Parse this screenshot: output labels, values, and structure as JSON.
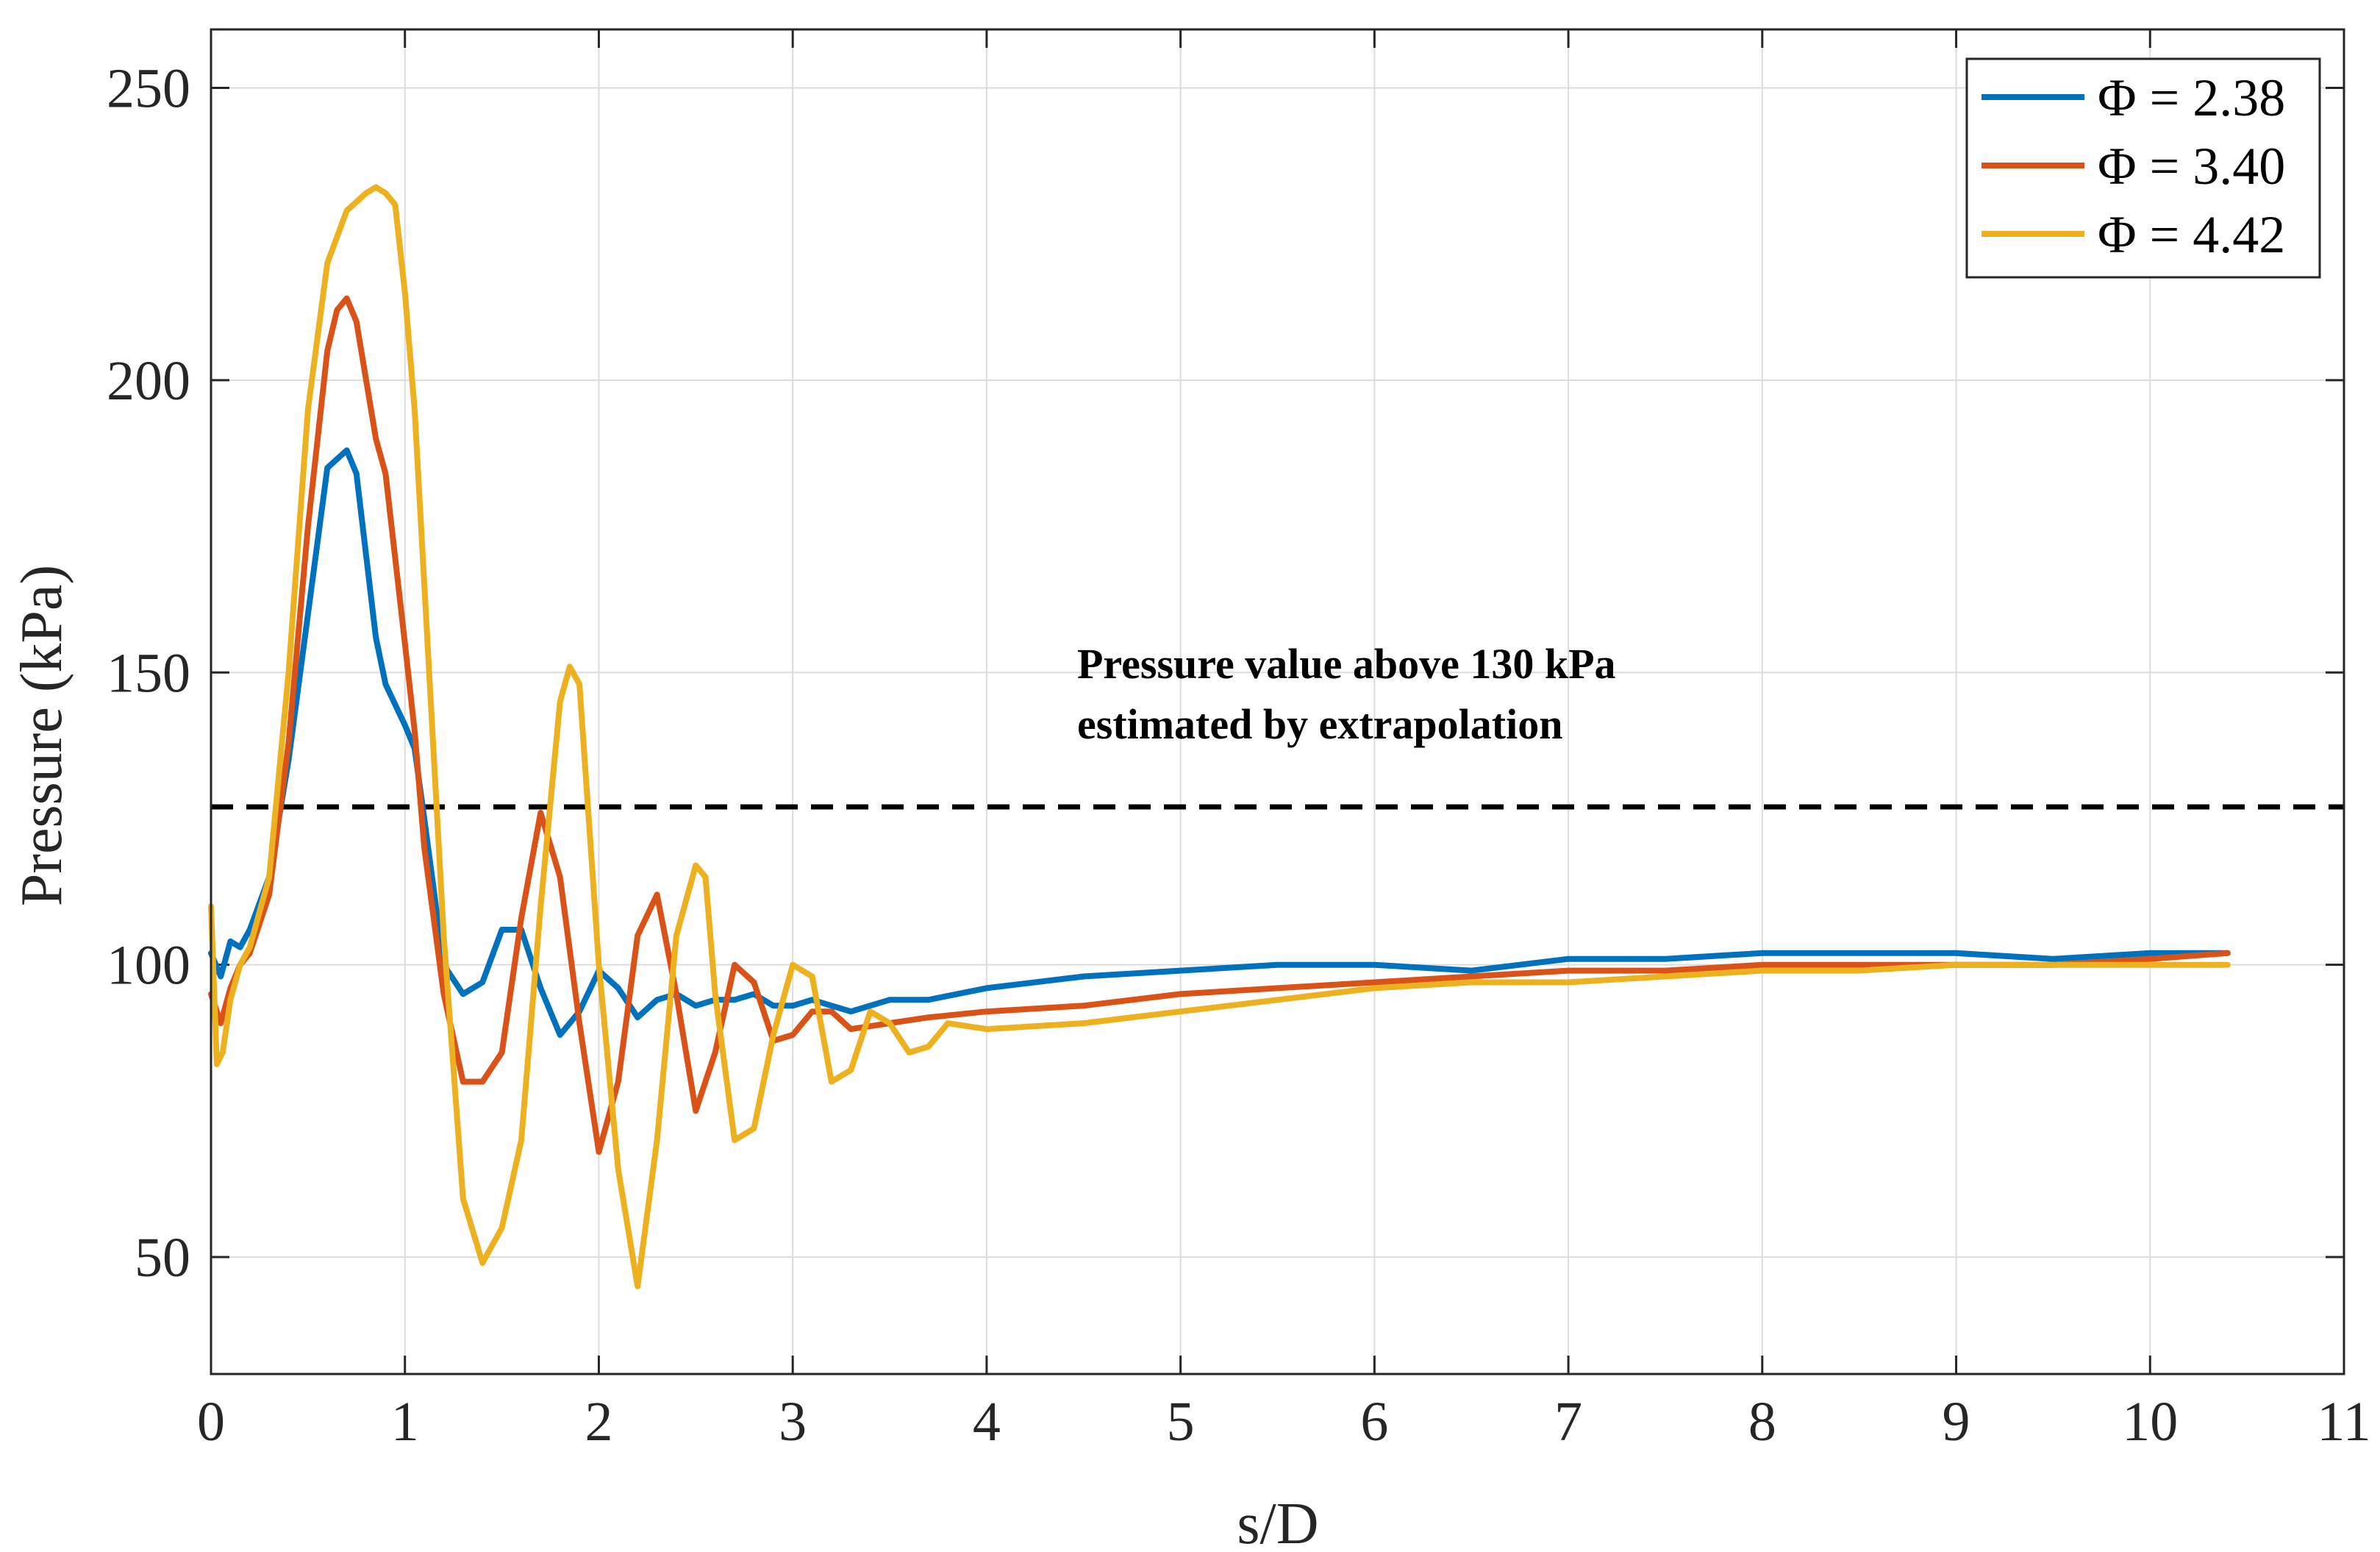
{
  "chart_data": {
    "type": "line",
    "xlabel": "s/D",
    "ylabel": "Pressure (kPa)",
    "xlim": [
      0,
      11
    ],
    "ylim": [
      30,
      260
    ],
    "xticks": [
      0,
      1,
      2,
      3,
      4,
      5,
      6,
      7,
      8,
      9,
      10,
      11
    ],
    "yticks": [
      50,
      100,
      150,
      200,
      250
    ],
    "grid": true,
    "legend_position": "top-right",
    "threshold": {
      "y": 127,
      "style": "dashed",
      "color": "#000000"
    },
    "annotation": {
      "lines": [
        "Pressure value above 130 kPa",
        "estimated by extrapolation"
      ]
    },
    "series": [
      {
        "name": "Φ = 2.38",
        "color": "#0072BD",
        "x": [
          0,
          0.05,
          0.1,
          0.15,
          0.2,
          0.3,
          0.4,
          0.5,
          0.6,
          0.7,
          0.75,
          0.8,
          0.85,
          0.9,
          1.0,
          1.05,
          1.1,
          1.2,
          1.3,
          1.4,
          1.5,
          1.6,
          1.7,
          1.8,
          1.9,
          2.0,
          2.1,
          2.2,
          2.3,
          2.4,
          2.5,
          2.6,
          2.7,
          2.8,
          2.9,
          3.0,
          3.1,
          3.2,
          3.3,
          3.5,
          3.7,
          4.0,
          4.5,
          5.0,
          5.5,
          6.0,
          6.5,
          7.0,
          7.5,
          8.0,
          8.5,
          9.0,
          9.5,
          10.0,
          10.4
        ],
        "values": [
          102,
          98,
          104,
          103,
          106,
          115,
          135,
          160,
          185,
          188,
          184,
          170,
          156,
          148,
          141,
          137,
          125,
          100,
          95,
          97,
          106,
          106,
          96,
          88,
          92,
          99,
          96,
          91,
          94,
          95,
          93,
          94,
          94,
          95,
          93,
          93,
          94,
          93,
          92,
          94,
          94,
          96,
          98,
          99,
          100,
          100,
          99,
          101,
          101,
          102,
          102,
          102,
          101,
          102,
          102
        ]
      },
      {
        "name": "Φ = 3.40",
        "color": "#D95319",
        "x": [
          0,
          0.05,
          0.1,
          0.15,
          0.2,
          0.3,
          0.4,
          0.5,
          0.6,
          0.65,
          0.7,
          0.75,
          0.8,
          0.85,
          0.9,
          1.0,
          1.05,
          1.1,
          1.2,
          1.3,
          1.4,
          1.5,
          1.6,
          1.7,
          1.8,
          1.9,
          2.0,
          2.1,
          2.2,
          2.3,
          2.4,
          2.5,
          2.6,
          2.7,
          2.8,
          2.9,
          3.0,
          3.1,
          3.2,
          3.3,
          3.5,
          3.7,
          4.0,
          4.5,
          5.0,
          5.5,
          6.0,
          6.5,
          7.0,
          7.5,
          8.0,
          8.5,
          9.0,
          9.5,
          10.0,
          10.4
        ],
        "values": [
          95,
          90,
          96,
          100,
          102,
          112,
          138,
          175,
          205,
          212,
          214,
          210,
          200,
          190,
          184,
          155,
          140,
          120,
          95,
          80,
          80,
          85,
          108,
          126,
          115,
          90,
          68,
          80,
          105,
          112,
          95,
          75,
          85,
          100,
          97,
          87,
          88,
          92,
          92,
          89,
          90,
          91,
          92,
          93,
          95,
          96,
          97,
          98,
          99,
          99,
          100,
          100,
          100,
          100,
          101,
          102
        ]
      },
      {
        "name": "Φ = 4.42",
        "color": "#EDB120",
        "x": [
          0,
          0.03,
          0.06,
          0.1,
          0.15,
          0.2,
          0.3,
          0.4,
          0.5,
          0.6,
          0.7,
          0.8,
          0.85,
          0.9,
          0.95,
          1.0,
          1.05,
          1.1,
          1.2,
          1.3,
          1.4,
          1.5,
          1.6,
          1.7,
          1.8,
          1.85,
          1.9,
          2.0,
          2.1,
          2.2,
          2.3,
          2.4,
          2.5,
          2.55,
          2.6,
          2.7,
          2.8,
          2.9,
          3.0,
          3.1,
          3.2,
          3.3,
          3.4,
          3.5,
          3.6,
          3.7,
          3.8,
          4.0,
          4.5,
          5.0,
          5.5,
          6.0,
          6.5,
          7.0,
          7.5,
          8.0,
          8.5,
          9.0,
          9.5,
          10.0,
          10.4
        ],
        "values": [
          110,
          83,
          85,
          94,
          100,
          103,
          115,
          150,
          195,
          220,
          229,
          232,
          233,
          232,
          230,
          215,
          195,
          165,
          105,
          60,
          49,
          55,
          70,
          110,
          145,
          151,
          148,
          100,
          65,
          45,
          70,
          105,
          117,
          115,
          95,
          70,
          72,
          88,
          100,
          98,
          80,
          82,
          92,
          90,
          85,
          86,
          90,
          89,
          90,
          92,
          94,
          96,
          97,
          97,
          98,
          99,
          99,
          100,
          100,
          100,
          100
        ]
      }
    ]
  }
}
